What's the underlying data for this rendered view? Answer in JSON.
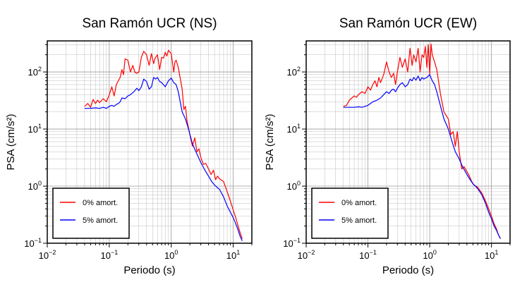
{
  "chart_data": [
    {
      "type": "line",
      "title": "San Ramón UCR (NS)",
      "xlabel": "Periodo (s)",
      "ylabel": "PSA (cm/s²)",
      "xscale": "log",
      "yscale": "log",
      "xlim": [
        0.01,
        20
      ],
      "ylim": [
        0.1,
        350
      ],
      "grid": true,
      "legend_position": "bottom-left",
      "x_ticks": [
        {
          "value": 0.01,
          "base": "10",
          "exp": "−2"
        },
        {
          "value": 0.1,
          "base": "10",
          "exp": "−1"
        },
        {
          "value": 1,
          "base": "10",
          "exp": "0"
        },
        {
          "value": 10,
          "base": "10",
          "exp": "1"
        }
      ],
      "y_ticks": [
        {
          "value": 0.1,
          "base": "10",
          "exp": "−1"
        },
        {
          "value": 1,
          "base": "10",
          "exp": "0"
        },
        {
          "value": 10,
          "base": "10",
          "exp": "1"
        },
        {
          "value": 100,
          "base": "10",
          "exp": "2"
        }
      ],
      "series": [
        {
          "name": "0% amort.",
          "color": "#ff0000",
          "points": [
            [
              0.04,
              25
            ],
            [
              0.045,
              28
            ],
            [
              0.05,
              24
            ],
            [
              0.055,
              33
            ],
            [
              0.06,
              28
            ],
            [
              0.065,
              32
            ],
            [
              0.07,
              29
            ],
            [
              0.08,
              34
            ],
            [
              0.09,
              30
            ],
            [
              0.1,
              40
            ],
            [
              0.11,
              55
            ],
            [
              0.12,
              38
            ],
            [
              0.13,
              60
            ],
            [
              0.14,
              70
            ],
            [
              0.15,
              80
            ],
            [
              0.16,
              110
            ],
            [
              0.17,
              90
            ],
            [
              0.18,
              170
            ],
            [
              0.2,
              160
            ],
            [
              0.22,
              100
            ],
            [
              0.24,
              130
            ],
            [
              0.26,
              98
            ],
            [
              0.28,
              95
            ],
            [
              0.3,
              100
            ],
            [
              0.33,
              180
            ],
            [
              0.36,
              230
            ],
            [
              0.4,
              200
            ],
            [
              0.44,
              130
            ],
            [
              0.48,
              210
            ],
            [
              0.52,
              140
            ],
            [
              0.55,
              175
            ],
            [
              0.6,
              200
            ],
            [
              0.65,
              110
            ],
            [
              0.7,
              180
            ],
            [
              0.75,
              175
            ],
            [
              0.8,
              220
            ],
            [
              0.85,
              190
            ],
            [
              0.9,
              240
            ],
            [
              1.0,
              210
            ],
            [
              1.1,
              100
            ],
            [
              1.15,
              150
            ],
            [
              1.2,
              160
            ],
            [
              1.3,
              120
            ],
            [
              1.5,
              50
            ],
            [
              1.6,
              22
            ],
            [
              1.7,
              25
            ],
            [
              1.8,
              14
            ],
            [
              2.0,
              8
            ],
            [
              2.2,
              5
            ],
            [
              2.4,
              7
            ],
            [
              2.6,
              4
            ],
            [
              2.8,
              4.5
            ],
            [
              3.0,
              3.2
            ],
            [
              3.3,
              2.4
            ],
            [
              3.6,
              2.5
            ],
            [
              4.0,
              2.0
            ],
            [
              4.4,
              1.6
            ],
            [
              4.8,
              1.9
            ],
            [
              5.2,
              1.3
            ],
            [
              5.6,
              1.5
            ],
            [
              6.0,
              1.35
            ],
            [
              7.0,
              1.2
            ],
            [
              8.0,
              0.8
            ],
            [
              9.0,
              0.55
            ],
            [
              10.0,
              0.38
            ],
            [
              11.0,
              0.28
            ],
            [
              12.0,
              0.2
            ],
            [
              13.0,
              0.15
            ],
            [
              14.0,
              0.12
            ]
          ]
        },
        {
          "name": "5% amort.",
          "color": "#0000ff",
          "points": [
            [
              0.04,
              23
            ],
            [
              0.05,
              23
            ],
            [
              0.06,
              23.5
            ],
            [
              0.07,
              23
            ],
            [
              0.08,
              24
            ],
            [
              0.09,
              23
            ],
            [
              0.1,
              25
            ],
            [
              0.11,
              26
            ],
            [
              0.12,
              25
            ],
            [
              0.13,
              27
            ],
            [
              0.14,
              28
            ],
            [
              0.15,
              30
            ],
            [
              0.16,
              35
            ],
            [
              0.18,
              34
            ],
            [
              0.2,
              38
            ],
            [
              0.22,
              40
            ],
            [
              0.25,
              45
            ],
            [
              0.28,
              52
            ],
            [
              0.3,
              47
            ],
            [
              0.33,
              55
            ],
            [
              0.36,
              75
            ],
            [
              0.4,
              68
            ],
            [
              0.44,
              50
            ],
            [
              0.48,
              55
            ],
            [
              0.52,
              80
            ],
            [
              0.56,
              75
            ],
            [
              0.6,
              80
            ],
            [
              0.65,
              68
            ],
            [
              0.7,
              65
            ],
            [
              0.75,
              60
            ],
            [
              0.8,
              55
            ],
            [
              0.9,
              70
            ],
            [
              1.0,
              78
            ],
            [
              1.1,
              65
            ],
            [
              1.2,
              60
            ],
            [
              1.3,
              45
            ],
            [
              1.5,
              20
            ],
            [
              1.7,
              15
            ],
            [
              1.9,
              10
            ],
            [
              2.2,
              5.5
            ],
            [
              2.5,
              4.0
            ],
            [
              3.0,
              2.6
            ],
            [
              3.5,
              1.9
            ],
            [
              4.0,
              1.5
            ],
            [
              4.5,
              1.2
            ],
            [
              5.0,
              1.05
            ],
            [
              5.5,
              0.95
            ],
            [
              6.0,
              0.88
            ],
            [
              7.0,
              0.65
            ],
            [
              8.0,
              0.45
            ],
            [
              9.0,
              0.35
            ],
            [
              10.0,
              0.28
            ],
            [
              11.0,
              0.22
            ],
            [
              12.0,
              0.17
            ],
            [
              13.0,
              0.13
            ],
            [
              14.0,
              0.11
            ]
          ]
        }
      ]
    },
    {
      "type": "line",
      "title": "San Ramón UCR (EW)",
      "xlabel": "Periodo (s)",
      "ylabel": "PSA (cm/s²)",
      "xscale": "log",
      "yscale": "log",
      "xlim": [
        0.01,
        20
      ],
      "ylim": [
        0.1,
        350
      ],
      "grid": true,
      "legend_position": "bottom-left",
      "x_ticks": [
        {
          "value": 0.01,
          "base": "10",
          "exp": "−2"
        },
        {
          "value": 0.1,
          "base": "10",
          "exp": "−1"
        },
        {
          "value": 1,
          "base": "10",
          "exp": "0"
        },
        {
          "value": 10,
          "base": "10",
          "exp": "1"
        }
      ],
      "y_ticks": [
        {
          "value": 0.1,
          "base": "10",
          "exp": "−1"
        },
        {
          "value": 1,
          "base": "10",
          "exp": "0"
        },
        {
          "value": 10,
          "base": "10",
          "exp": "1"
        },
        {
          "value": 100,
          "base": "10",
          "exp": "2"
        }
      ],
      "series": [
        {
          "name": "0% amort.",
          "color": "#ff0000",
          "points": [
            [
              0.04,
              25
            ],
            [
              0.045,
              26
            ],
            [
              0.05,
              32
            ],
            [
              0.055,
              35
            ],
            [
              0.06,
              38
            ],
            [
              0.065,
              36
            ],
            [
              0.07,
              40
            ],
            [
              0.08,
              45
            ],
            [
              0.09,
              42
            ],
            [
              0.1,
              55
            ],
            [
              0.11,
              48
            ],
            [
              0.12,
              60
            ],
            [
              0.13,
              70
            ],
            [
              0.14,
              55
            ],
            [
              0.15,
              80
            ],
            [
              0.16,
              65
            ],
            [
              0.18,
              90
            ],
            [
              0.2,
              150
            ],
            [
              0.22,
              100
            ],
            [
              0.24,
              80
            ],
            [
              0.26,
              95
            ],
            [
              0.28,
              60
            ],
            [
              0.3,
              100
            ],
            [
              0.33,
              180
            ],
            [
              0.36,
              120
            ],
            [
              0.4,
              170
            ],
            [
              0.44,
              100
            ],
            [
              0.48,
              260
            ],
            [
              0.52,
              130
            ],
            [
              0.55,
              200
            ],
            [
              0.6,
              150
            ],
            [
              0.65,
              260
            ],
            [
              0.7,
              100
            ],
            [
              0.75,
              200
            ],
            [
              0.8,
              180
            ],
            [
              0.85,
              280
            ],
            [
              0.9,
              120
            ],
            [
              0.95,
              300
            ],
            [
              1.0,
              90
            ],
            [
              1.05,
              310
            ],
            [
              1.1,
              200
            ],
            [
              1.2,
              150
            ],
            [
              1.3,
              110
            ],
            [
              1.5,
              40
            ],
            [
              1.7,
              20
            ],
            [
              2.0,
              15
            ],
            [
              2.2,
              8
            ],
            [
              2.4,
              9
            ],
            [
              2.6,
              5
            ],
            [
              2.8,
              9
            ],
            [
              3.0,
              4
            ],
            [
              3.3,
              2.0
            ],
            [
              3.6,
              2.2
            ],
            [
              4.0,
              1.8
            ],
            [
              4.4,
              1.5
            ],
            [
              4.8,
              1.2
            ],
            [
              5.2,
              1.05
            ],
            [
              5.6,
              1.0
            ],
            [
              6.0,
              0.95
            ],
            [
              7.0,
              0.75
            ],
            [
              8.0,
              0.55
            ],
            [
              9.0,
              0.4
            ],
            [
              10.0,
              0.3
            ],
            [
              11.0,
              0.22
            ],
            [
              12.0,
              0.18
            ],
            [
              13.0,
              0.14
            ],
            [
              14.0,
              0.12
            ]
          ]
        },
        {
          "name": "5% amort.",
          "color": "#0000ff",
          "points": [
            [
              0.04,
              24
            ],
            [
              0.05,
              24
            ],
            [
              0.06,
              24
            ],
            [
              0.07,
              24.5
            ],
            [
              0.08,
              24
            ],
            [
              0.09,
              25
            ],
            [
              0.1,
              26
            ],
            [
              0.11,
              28
            ],
            [
              0.12,
              30
            ],
            [
              0.14,
              32
            ],
            [
              0.16,
              35
            ],
            [
              0.18,
              40
            ],
            [
              0.2,
              45
            ],
            [
              0.22,
              42
            ],
            [
              0.24,
              48
            ],
            [
              0.26,
              50
            ],
            [
              0.28,
              45
            ],
            [
              0.3,
              52
            ],
            [
              0.33,
              60
            ],
            [
              0.36,
              65
            ],
            [
              0.4,
              55
            ],
            [
              0.44,
              60
            ],
            [
              0.48,
              75
            ],
            [
              0.52,
              70
            ],
            [
              0.55,
              80
            ],
            [
              0.6,
              72
            ],
            [
              0.65,
              85
            ],
            [
              0.7,
              70
            ],
            [
              0.75,
              80
            ],
            [
              0.8,
              75
            ],
            [
              0.9,
              80
            ],
            [
              1.0,
              90
            ],
            [
              1.1,
              70
            ],
            [
              1.2,
              60
            ],
            [
              1.3,
              45
            ],
            [
              1.5,
              25
            ],
            [
              1.7,
              15
            ],
            [
              2.0,
              10
            ],
            [
              2.3,
              6
            ],
            [
              2.6,
              4
            ],
            [
              3.0,
              3
            ],
            [
              3.4,
              2.2
            ],
            [
              4.0,
              1.6
            ],
            [
              4.5,
              1.3
            ],
            [
              5.0,
              1.1
            ],
            [
              5.5,
              1.0
            ],
            [
              6.0,
              0.9
            ],
            [
              7.0,
              0.7
            ],
            [
              8.0,
              0.5
            ],
            [
              9.0,
              0.35
            ],
            [
              10.0,
              0.27
            ],
            [
              11.0,
              0.2
            ],
            [
              12.0,
              0.17
            ],
            [
              13.0,
              0.14
            ],
            [
              14.0,
              0.12
            ]
          ]
        }
      ]
    }
  ]
}
